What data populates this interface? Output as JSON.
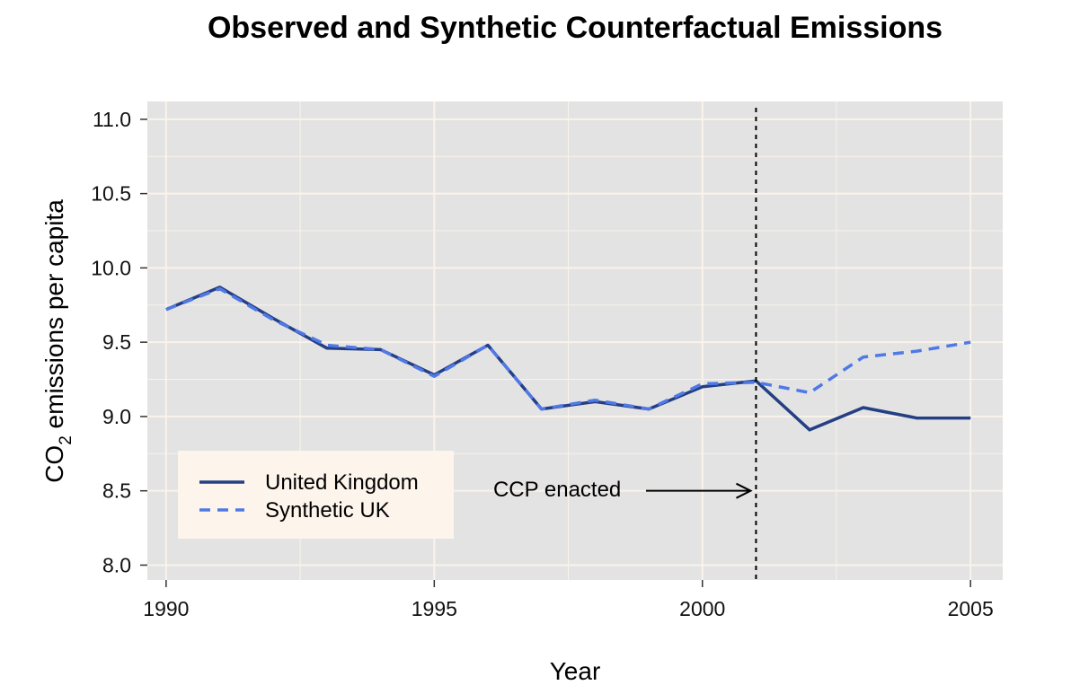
{
  "chart_data": {
    "type": "line",
    "title": "Observed and Synthetic Counterfactual Emissions",
    "xlabel": "Year",
    "ylabel_main": "CO",
    "ylabel_sub": "2",
    "ylabel_rest": " emissions per capita",
    "xlim": [
      1989.65,
      2005.6
    ],
    "ylim": [
      7.9,
      11.12
    ],
    "x_ticks": [
      1990,
      1995,
      2000,
      2005
    ],
    "y_ticks": [
      8.0,
      8.5,
      9.0,
      9.5,
      10.0,
      10.5,
      11.0
    ],
    "x_minor_ticks": [
      1992.5,
      1997.5,
      2002.5
    ],
    "y_minor_ticks": [
      8.75,
      9.25,
      9.75,
      10.25,
      10.75
    ],
    "grid": true,
    "series": [
      {
        "name": "United Kingdom",
        "color": "#253f84",
        "style": "solid",
        "x": [
          1990,
          1991,
          1992,
          1993,
          1994,
          1995,
          1996,
          1997,
          1998,
          1999,
          2000,
          2001,
          2002,
          2003,
          2004,
          2005
        ],
        "y": [
          9.72,
          9.87,
          9.66,
          9.46,
          9.45,
          9.28,
          9.48,
          9.05,
          9.1,
          9.05,
          9.2,
          9.24,
          8.91,
          9.06,
          8.99,
          8.99
        ]
      },
      {
        "name": "Synthetic UK",
        "color": "#4e79e6",
        "style": "dashed",
        "x": [
          1990,
          1991,
          1992,
          1993,
          1994,
          1995,
          1996,
          1997,
          1998,
          1999,
          2000,
          2001,
          2002,
          2003,
          2004,
          2005
        ],
        "y": [
          9.72,
          9.86,
          9.65,
          9.48,
          9.45,
          9.27,
          9.48,
          9.05,
          9.11,
          9.05,
          9.22,
          9.23,
          9.16,
          9.4,
          9.44,
          9.5
        ]
      }
    ],
    "vline": {
      "x": 2001,
      "style": "dotted",
      "color": "#000000"
    },
    "annotation": {
      "text": "CCP enacted",
      "text_x": 1996.1,
      "arrow_to_x": 2000.9,
      "y": 8.5
    },
    "legend": {
      "position": "bottom-left"
    }
  }
}
